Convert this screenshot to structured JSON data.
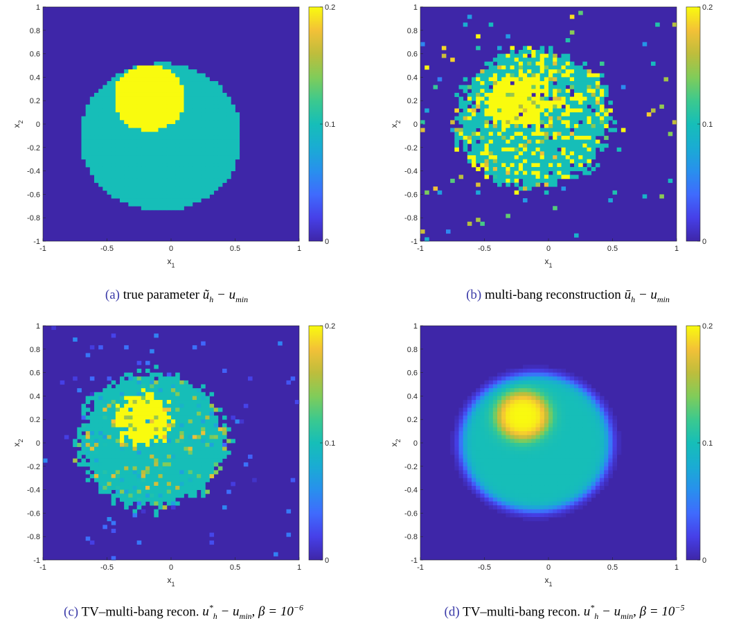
{
  "colors": {
    "background": "#3e26a8",
    "caption_tag": "#3a3aa8"
  },
  "captions": [
    {
      "tag": "(a)",
      "text": "true parameter ",
      "math": "ũ_h − u_min"
    },
    {
      "tag": "(b)",
      "text": "multi-bang reconstruction ",
      "math": "ū_h − u_min"
    },
    {
      "tag": "(c)",
      "text": "TV–multi-bang recon. ",
      "math": "u*_h − u_min, β = 10^−6"
    },
    {
      "tag": "(d)",
      "text": "TV–multi-bang recon. ",
      "math": "u*_h − u_min, β = 10^−5"
    }
  ],
  "chart_data": [
    {
      "type": "heatmap",
      "id": "a",
      "xlabel": "x1",
      "ylabel": "x2",
      "xlim": [
        -1,
        1
      ],
      "ylim": [
        -1,
        1
      ],
      "xticks": [
        "-1",
        "-0.5",
        "0",
        "0.5",
        "1"
      ],
      "yticks": [
        "-1",
        "-0.8",
        "-0.6",
        "-0.4",
        "-0.2",
        "0",
        "0.2",
        "0.4",
        "0.6",
        "0.8",
        "1"
      ],
      "colorbar": {
        "ticks": [
          "0",
          "0.1",
          "0.2"
        ],
        "clim": [
          0,
          0.2
        ],
        "colormap": "parula"
      },
      "field": {
        "outer_disk": {
          "center": [
            -0.08,
            -0.11
          ],
          "radius": 0.63,
          "value": 0.1
        },
        "inner_disk": {
          "center": [
            -0.17,
            0.22
          ],
          "radius": 0.28,
          "value": 0.2
        },
        "background": 0,
        "style": "blocky"
      }
    },
    {
      "type": "heatmap",
      "id": "b",
      "xlabel": "x1",
      "ylabel": "x2",
      "xlim": [
        -1,
        1
      ],
      "ylim": [
        -1,
        1
      ],
      "xticks": [
        "-1",
        "-0.5",
        "0",
        "0.5",
        "1"
      ],
      "yticks": [
        "-1",
        "-0.8",
        "-0.6",
        "-0.4",
        "-0.2",
        "0",
        "0.2",
        "0.4",
        "0.6",
        "0.8",
        "1"
      ],
      "colorbar": {
        "ticks": [
          "0",
          "0.1",
          "0.2"
        ],
        "clim": [
          0,
          0.2
        ],
        "colormap": "parula"
      },
      "field": {
        "outer_disk": {
          "center": [
            -0.12,
            0.05
          ],
          "radius": 0.6,
          "value": 0.1
        },
        "inner_disk": {
          "center": [
            -0.25,
            0.2
          ],
          "radius": 0.24,
          "value": 0.2
        },
        "background": 0,
        "style": "noisy"
      }
    },
    {
      "type": "heatmap",
      "id": "c",
      "xlabel": "x1",
      "ylabel": "x2",
      "xlim": [
        -1,
        1
      ],
      "ylim": [
        -1,
        1
      ],
      "xticks": [
        "-1",
        "-0.5",
        "0",
        "0.5",
        "1"
      ],
      "yticks": [
        "-1",
        "-0.8",
        "-0.6",
        "-0.4",
        "-0.2",
        "0",
        "0.2",
        "0.4",
        "0.6",
        "0.8",
        "1"
      ],
      "colorbar": {
        "ticks": [
          "0",
          "0.1",
          "0.2"
        ],
        "clim": [
          0,
          0.2
        ],
        "colormap": "parula"
      },
      "field": {
        "outer_disk": {
          "center": [
            -0.15,
            0.02
          ],
          "radius": 0.58,
          "value": 0.1
        },
        "inner_disk": {
          "center": [
            -0.22,
            0.2
          ],
          "radius": 0.22,
          "value": 0.2
        },
        "background": 0,
        "style": "patchy"
      }
    },
    {
      "type": "heatmap",
      "id": "d",
      "xlabel": "x1",
      "ylabel": "x2",
      "xlim": [
        -1,
        1
      ],
      "ylim": [
        -1,
        1
      ],
      "xticks": [
        "-1",
        "-0.5",
        "0",
        "0.5",
        "1"
      ],
      "yticks": [
        "-1",
        "-0.8",
        "-0.6",
        "-0.4",
        "-0.2",
        "0",
        "0.2",
        "0.4",
        "0.6",
        "0.8",
        "1"
      ],
      "colorbar": {
        "ticks": [
          "0",
          "0.1",
          "0.2"
        ],
        "clim": [
          0,
          0.2
        ],
        "colormap": "parula"
      },
      "field": {
        "outer_disk": {
          "center": [
            -0.1,
            0.0
          ],
          "radius": 0.58,
          "value": 0.1
        },
        "inner_disk": {
          "center": [
            -0.2,
            0.23
          ],
          "radius": 0.2,
          "value": 0.2
        },
        "background": 0,
        "style": "smooth"
      }
    }
  ]
}
